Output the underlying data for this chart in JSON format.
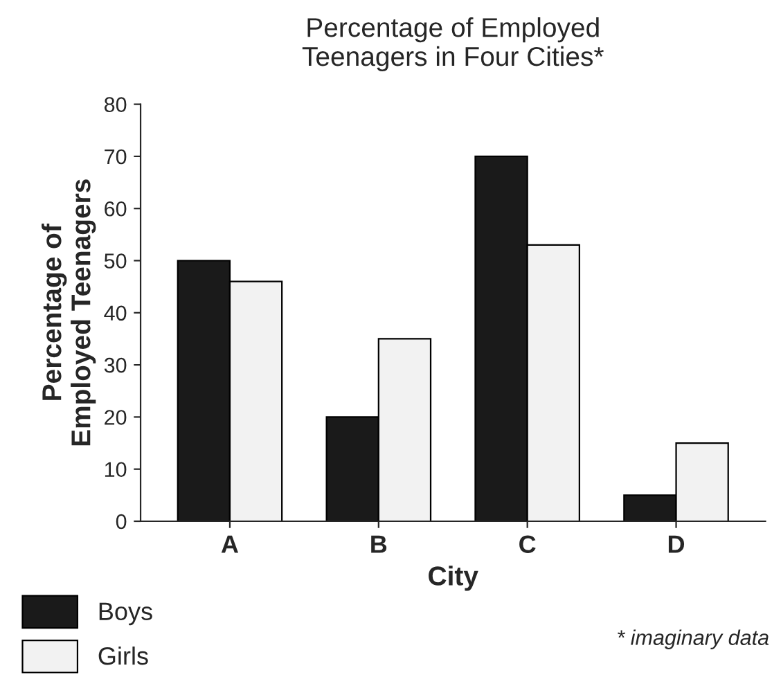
{
  "chart_data": {
    "type": "bar",
    "title": "Percentage of Employed\nTeenagers in Four Cities*",
    "xlabel": "City",
    "ylabel": "Percentage of\nEmployed Teenagers",
    "categories": [
      "A",
      "B",
      "C",
      "D"
    ],
    "series": [
      {
        "name": "Boys",
        "color": "#1a1a1a",
        "values": [
          50,
          20,
          70,
          5
        ]
      },
      {
        "name": "Girls",
        "color": "#f2f2f2",
        "values": [
          46,
          35,
          53,
          15
        ]
      }
    ],
    "ylim": [
      0,
      80
    ],
    "yticks": [
      0,
      10,
      20,
      30,
      40,
      50,
      60,
      70,
      80
    ],
    "grid": false,
    "legend": "bottom left",
    "annotations": [
      "* imaginary data"
    ]
  }
}
